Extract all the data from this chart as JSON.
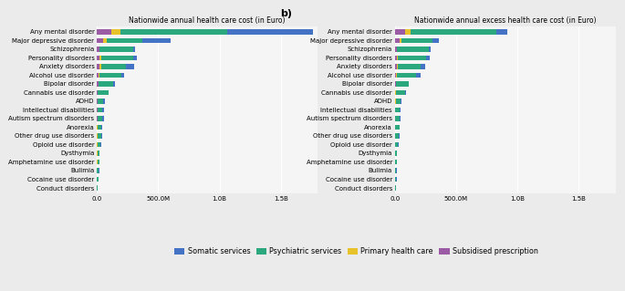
{
  "categories": [
    "Any mental disorder",
    "Major depressive disorder",
    "Schizophrenia",
    "Personality disorders",
    "Anxiety disorders",
    "Alcohol use disorder",
    "Bipolar disorder",
    "Cannabis use disorder",
    "ADHD",
    "Intellectual disabilities",
    "Autism spectrum disorders",
    "Anorexia",
    "Other drug use disorders",
    "Opioid use disorder",
    "Dysthymia",
    "Amphetamine use disorder",
    "Bulimia",
    "Cocaine use disorder",
    "Conduct disorders"
  ],
  "panel_a": {
    "title": "Nationwide annual health care cost (in Euro)",
    "subsidised": [
      120000000,
      50000000,
      18000000,
      18000000,
      18000000,
      14000000,
      10000000,
      4000000,
      4000000,
      2500000,
      2500000,
      2000000,
      1800000,
      1800000,
      1500000,
      1500000,
      1200000,
      1200000,
      400000
    ],
    "primary": [
      70000000,
      28000000,
      5000000,
      18000000,
      18000000,
      9000000,
      3000000,
      3000000,
      3000000,
      2000000,
      2000000,
      1800000,
      1800000,
      1800000,
      1500000,
      1500000,
      1200000,
      1200000,
      400000
    ],
    "psychiatric": [
      870000000,
      290000000,
      270000000,
      260000000,
      200000000,
      175000000,
      120000000,
      85000000,
      45000000,
      42000000,
      42000000,
      35000000,
      30000000,
      25000000,
      18000000,
      18000000,
      14000000,
      12000000,
      8000000
    ],
    "somatic": [
      700000000,
      230000000,
      20000000,
      30000000,
      70000000,
      25000000,
      15000000,
      5000000,
      15000000,
      12000000,
      10000000,
      8000000,
      8000000,
      5000000,
      3000000,
      3000000,
      2000000,
      2000000,
      1000000
    ]
  },
  "panel_b": {
    "title": "Nationwide annual excess health care cost (in Euro)",
    "subsidised": [
      80000000,
      38000000,
      16000000,
      14000000,
      14000000,
      11000000,
      9000000,
      3500000,
      3500000,
      2000000,
      2000000,
      1800000,
      1500000,
      1500000,
      1200000,
      1200000,
      1000000,
      1000000,
      300000
    ],
    "primary": [
      45000000,
      18000000,
      3500000,
      13000000,
      13000000,
      7000000,
      1800000,
      1800000,
      1800000,
      1300000,
      1300000,
      1300000,
      1300000,
      1300000,
      1200000,
      1200000,
      900000,
      900000,
      250000
    ],
    "psychiatric": [
      700000000,
      250000000,
      260000000,
      230000000,
      180000000,
      155000000,
      100000000,
      80000000,
      40000000,
      38000000,
      38000000,
      32000000,
      28000000,
      22000000,
      15000000,
      15000000,
      10000000,
      10000000,
      6000000
    ],
    "somatic": [
      90000000,
      50000000,
      10000000,
      30000000,
      40000000,
      35000000,
      5000000,
      3000000,
      10000000,
      5000000,
      8000000,
      5000000,
      5000000,
      4000000,
      2000000,
      2000000,
      1500000,
      1500000,
      500000
    ]
  },
  "colors": {
    "somatic": "#4472C4",
    "psychiatric": "#2CA87F",
    "primary": "#E8C22A",
    "subsidised": "#9B5BA5"
  },
  "legend_labels": [
    "Somatic services",
    "Psychiatric services",
    "Primary health care",
    "Subsidised prescription"
  ],
  "xlim": 1800000000,
  "xticks": [
    0,
    500000000,
    1000000000,
    1500000000
  ],
  "xtick_labels": [
    "0.0",
    "500.0M",
    "1.0B",
    "1.5B"
  ],
  "background_color": "#F5F5F5",
  "grid_color": "#FFFFFF",
  "bar_height": 0.6
}
